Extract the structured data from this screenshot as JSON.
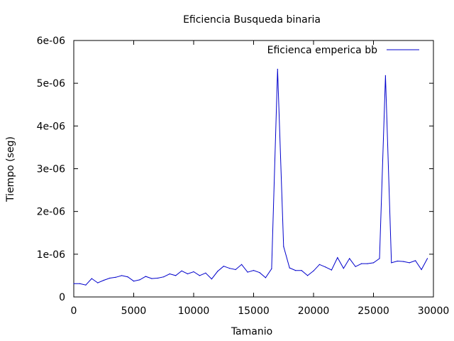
{
  "chart_data": {
    "type": "line",
    "title": "Eficiencia Busqueda binaria",
    "xlabel": "Tamanio",
    "ylabel": "Tiempo (seg)",
    "xlim": [
      0,
      30000
    ],
    "ylim": [
      0,
      6e-06
    ],
    "x_ticks": [
      0,
      5000,
      10000,
      15000,
      20000,
      25000,
      30000
    ],
    "x_tick_labels": [
      "0",
      "5000",
      "10000",
      "15000",
      "20000",
      "25000",
      "30000"
    ],
    "y_ticks": [
      0,
      1e-06,
      2e-06,
      3e-06,
      4e-06,
      5e-06,
      6e-06
    ],
    "y_tick_labels": [
      "0",
      "1e-06",
      "2e-06",
      "3e-06",
      "4e-06",
      "5e-06",
      "6e-06"
    ],
    "grid": false,
    "legend_position": "top-right",
    "series": [
      {
        "name": "Eficienca emperica bb",
        "color": "#0000cc",
        "x": [
          0,
          500,
          1000,
          1500,
          2000,
          2500,
          3000,
          3500,
          4000,
          4500,
          5000,
          5500,
          6000,
          6500,
          7000,
          7500,
          8000,
          8500,
          9000,
          9500,
          10000,
          10500,
          11000,
          11500,
          12000,
          12500,
          13000,
          13500,
          14000,
          14500,
          15000,
          15500,
          16000,
          16500,
          17000,
          17500,
          18000,
          18500,
          19000,
          19500,
          20000,
          20500,
          21000,
          21500,
          22000,
          22500,
          23000,
          23500,
          24000,
          24500,
          25000,
          25500,
          26000,
          26500,
          27000,
          27500,
          28000,
          28500,
          29000,
          29500
        ],
        "y": [
          3.1e-07,
          3.1e-07,
          2.8e-07,
          4.3e-07,
          3.3e-07,
          3.9e-07,
          4.4e-07,
          4.6e-07,
          5e-07,
          4.7e-07,
          3.7e-07,
          4e-07,
          4.8e-07,
          4.3e-07,
          4.4e-07,
          4.7e-07,
          5.4e-07,
          5e-07,
          6.1e-07,
          5.4e-07,
          5.9e-07,
          5e-07,
          5.6e-07,
          4.2e-07,
          6e-07,
          7.2e-07,
          6.7e-07,
          6.4e-07,
          7.6e-07,
          5.8e-07,
          6.2e-07,
          5.7e-07,
          4.5e-07,
          6.6e-07,
          5.33e-06,
          1.18e-06,
          6.8e-07,
          6.2e-07,
          6.2e-07,
          5e-07,
          6.1e-07,
          7.6e-07,
          7e-07,
          6.3e-07,
          9.2e-07,
          6.7e-07,
          9e-07,
          7.1e-07,
          7.8e-07,
          7.8e-07,
          8e-07,
          9e-07,
          5.18e-06,
          8e-07,
          8.4e-07,
          8.3e-07,
          8e-07,
          8.5e-07,
          6.4e-07,
          9e-07
        ]
      }
    ]
  }
}
